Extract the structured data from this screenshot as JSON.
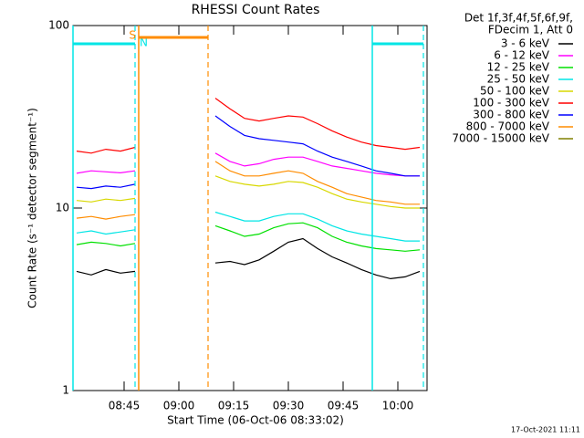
{
  "chart_data": {
    "type": "line",
    "title": "RHESSI Count Rates",
    "y_label": "Count Rate (s⁻¹ detector segment⁻¹)",
    "x_label": "Start Time (06-Oct-06 08:33:02)",
    "legend_header": [
      "Det 1f,3f,4f,5f,6f,9f,",
      "FDecim 1, Att 0"
    ],
    "footer": "17-Oct-2021 11:11",
    "log_y": true,
    "legend": "outside-right",
    "xlim": [
      "08:31",
      "10:08"
    ],
    "xticks": [
      "08:45",
      "09:00",
      "09:15",
      "09:30",
      "09:45",
      "10:00"
    ],
    "ylim": [
      1,
      100
    ],
    "yticks": [
      1,
      10,
      100
    ],
    "x": [
      "08:32",
      "08:36",
      "08:40",
      "08:44",
      "08:48",
      "08:50",
      "09:10",
      "09:14",
      "09:18",
      "09:22",
      "09:26",
      "09:30",
      "09:34",
      "09:38",
      "09:42",
      "09:46",
      "09:50",
      "09:54",
      "09:58",
      "10:02",
      "10:06"
    ],
    "series": [
      {
        "name": "3 - 6 keV",
        "color": "#000000",
        "values": [
          4.5,
          4.3,
          4.6,
          4.4,
          4.5,
          null,
          5.0,
          5.1,
          4.9,
          5.2,
          5.8,
          6.5,
          6.8,
          6.0,
          5.4,
          5.0,
          4.6,
          4.3,
          4.1,
          4.2,
          4.5
        ]
      },
      {
        "name": "6 - 12 keV",
        "color": "#ff00ff",
        "values": [
          15.5,
          16,
          15.8,
          15.6,
          16,
          null,
          20,
          18,
          17,
          17.5,
          18.5,
          19,
          19,
          18,
          17,
          16.5,
          16,
          15.5,
          15.2,
          15,
          15
        ]
      },
      {
        "name": "12 - 25 keV",
        "color": "#00e000",
        "values": [
          6.3,
          6.5,
          6.4,
          6.2,
          6.4,
          null,
          8,
          7.5,
          7,
          7.2,
          7.8,
          8.2,
          8.3,
          7.8,
          7,
          6.5,
          6.2,
          6,
          5.9,
          5.8,
          5.9
        ]
      },
      {
        "name": "25 - 50 keV",
        "color": "#00e5e5",
        "values": [
          7.3,
          7.5,
          7.2,
          7.4,
          7.6,
          null,
          9.5,
          9,
          8.5,
          8.5,
          9,
          9.3,
          9.3,
          8.7,
          8,
          7.5,
          7.2,
          7,
          6.8,
          6.6,
          6.6
        ]
      },
      {
        "name": "50 - 100 keV",
        "color": "#d8d800",
        "values": [
          11,
          10.8,
          11.2,
          11,
          11.3,
          null,
          15,
          14,
          13.5,
          13.2,
          13.5,
          14,
          13.8,
          13,
          12,
          11.2,
          10.8,
          10.5,
          10.2,
          10,
          10
        ]
      },
      {
        "name": "100 - 300 keV",
        "color": "#ff0000",
        "values": [
          20.5,
          20,
          21,
          20.5,
          21.5,
          null,
          40,
          35,
          31,
          30,
          31,
          32,
          31.5,
          29,
          26.5,
          24.5,
          23,
          22,
          21.5,
          21,
          21.5
        ]
      },
      {
        "name": "300 - 800 keV",
        "color": "#0000ff",
        "values": [
          13,
          12.8,
          13.2,
          13,
          13.5,
          null,
          32,
          28,
          25,
          24,
          23.5,
          23,
          22.5,
          20.5,
          19,
          18,
          17,
          16,
          15.5,
          15,
          15
        ]
      },
      {
        "name": "800 - 7000 keV",
        "color": "#ff8c00",
        "values": [
          8.8,
          9,
          8.7,
          9,
          9.2,
          null,
          18,
          16,
          15,
          15,
          15.5,
          16,
          15.5,
          14,
          13,
          12,
          11.5,
          11,
          10.8,
          10.5,
          10.5
        ]
      },
      {
        "name": "7000 - 15000 keV",
        "color": "#808000",
        "values": [
          null,
          null,
          null,
          null,
          null,
          null,
          null,
          null,
          null,
          null,
          null,
          null,
          null,
          null,
          null,
          null,
          null,
          null,
          null,
          null,
          null
        ]
      }
    ],
    "intervals": [
      {
        "label": "N",
        "color": "#00e5e5",
        "x": [
          "08:31",
          "08:48"
        ]
      },
      {
        "label": "S",
        "color": "#ff8c00",
        "x": [
          "08:49",
          "09:08"
        ]
      },
      {
        "color": "#00e5e5",
        "x": [
          "09:53",
          "10:07"
        ]
      }
    ]
  }
}
